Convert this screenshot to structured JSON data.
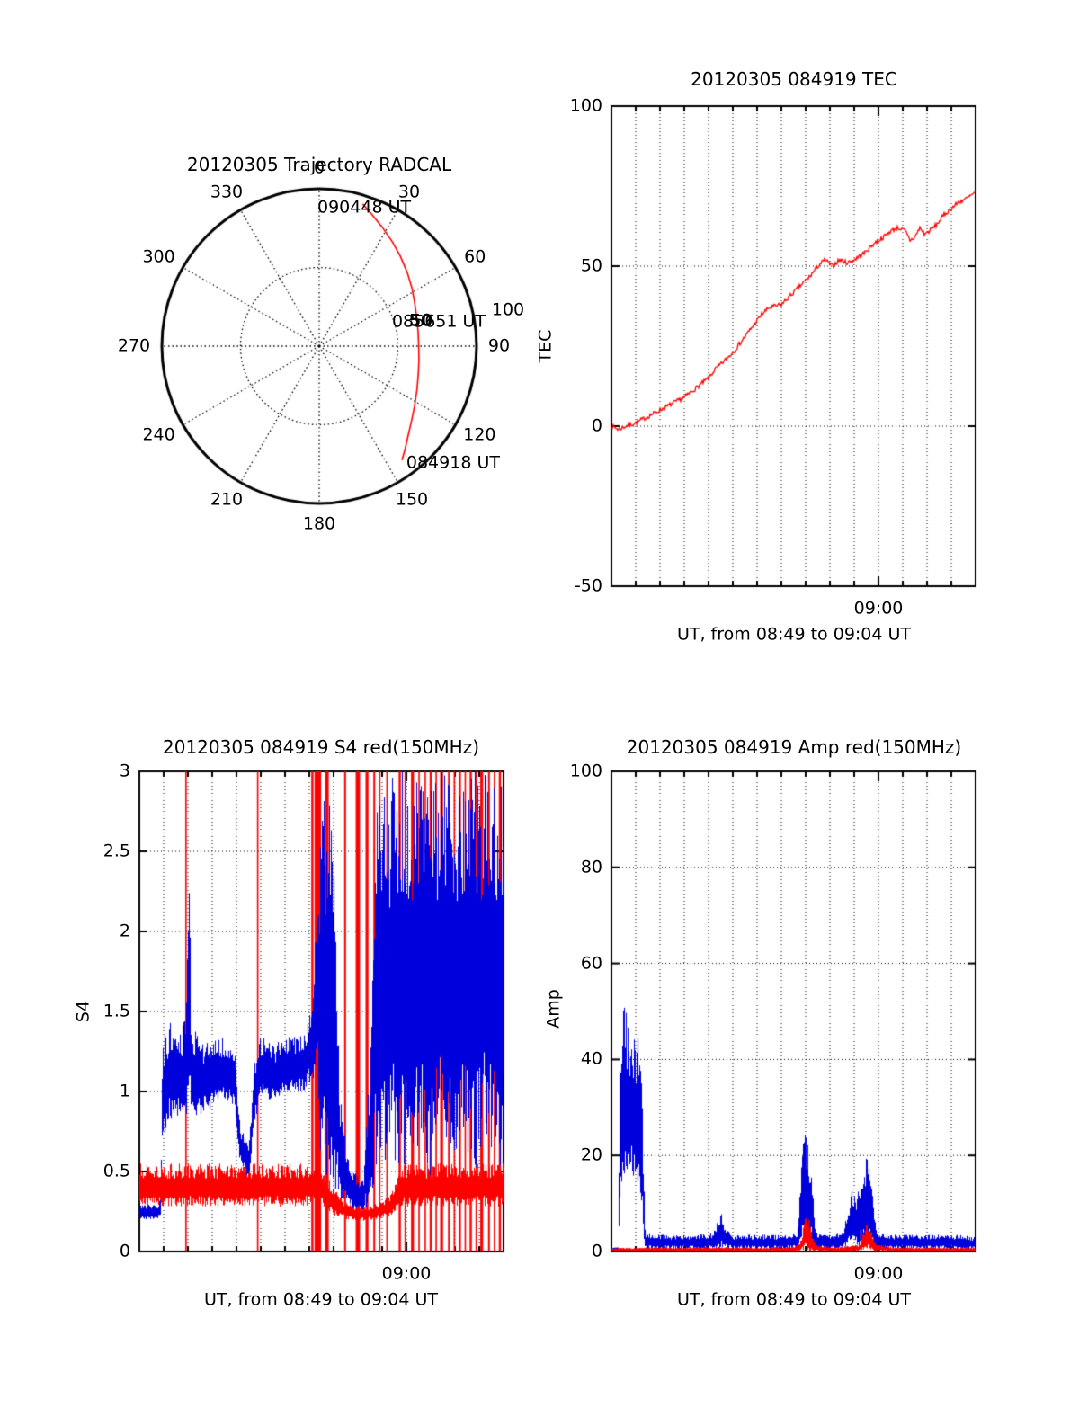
{
  "colors": {
    "red": "#ff0000",
    "blue": "#0000dd",
    "axis": "#000000",
    "background": "#ffffff"
  },
  "chart_data": [
    {
      "type": "polar-line",
      "title": "20120305 Trajectory RADCAL",
      "azimuth_tick_labels": [
        "0",
        "30",
        "60",
        "90",
        "120",
        "150",
        "180",
        "210",
        "240",
        "270",
        "300",
        "330"
      ],
      "azimuth_tick_degrees": [
        0,
        30,
        60,
        90,
        120,
        150,
        180,
        210,
        240,
        270,
        300,
        330
      ],
      "ring_radii": [
        0.5,
        1.0
      ],
      "annotations": [
        {
          "label": "090448 UT",
          "ax": 0.286,
          "ay": -0.88,
          "bold": false
        },
        {
          "label": "085651 UT",
          "ax": 0.76,
          "ay": -0.154,
          "bold": false
        },
        {
          "label": "50",
          "ax": 0.646,
          "ay": -0.16,
          "bold": true
        },
        {
          "label": "100",
          "ax": 1.2,
          "ay": -0.229,
          "bold": false
        },
        {
          "label": "084918 UT",
          "ax": 0.851,
          "ay": 0.743,
          "bold": false
        }
      ],
      "trajectory_az_r": [
        [
          17,
          0.945
        ],
        [
          22,
          0.9
        ],
        [
          28,
          0.855
        ],
        [
          35,
          0.81
        ],
        [
          42,
          0.77
        ],
        [
          50,
          0.73
        ],
        [
          58,
          0.695
        ],
        [
          66,
          0.665
        ],
        [
          74,
          0.645
        ],
        [
          82,
          0.635
        ],
        [
          90,
          0.632
        ],
        [
          98,
          0.64
        ],
        [
          106,
          0.655
        ],
        [
          114,
          0.68
        ],
        [
          122,
          0.715
        ],
        [
          129,
          0.755
        ],
        [
          135,
          0.8
        ],
        [
          140,
          0.85
        ],
        [
          144,
          0.895
        ]
      ]
    },
    {
      "type": "line",
      "title": "20120305 084919 TEC",
      "ylabel": "TEC",
      "xlabel": "UT, from 08:49 to 09:04 UT",
      "ylim": [
        -50,
        100
      ],
      "yticks": [
        100,
        50,
        0,
        -50
      ],
      "ytick_labels": [
        "100",
        "50",
        "0",
        "-50"
      ],
      "grid_yticks": [
        0,
        50
      ],
      "xtick_label": "09:00",
      "xtick_fraction": 0.7333,
      "x_minutes": 15,
      "noise": 0.7,
      "series_keypoints": [
        [
          0,
          0
        ],
        [
          0.3,
          -1
        ],
        [
          0.6,
          0
        ],
        [
          1,
          1
        ],
        [
          1.5,
          3
        ],
        [
          2,
          5
        ],
        [
          2.5,
          7
        ],
        [
          3,
          9
        ],
        [
          3.5,
          12
        ],
        [
          4,
          15
        ],
        [
          4.3,
          18
        ],
        [
          4.6,
          20
        ],
        [
          5,
          23
        ],
        [
          5.4,
          27
        ],
        [
          5.8,
          31
        ],
        [
          6.2,
          35
        ],
        [
          6.5,
          37
        ],
        [
          7,
          38
        ],
        [
          7.4,
          41
        ],
        [
          7.8,
          44
        ],
        [
          8.2,
          47
        ],
        [
          8.5,
          50
        ],
        [
          8.8,
          52
        ],
        [
          9.1,
          50
        ],
        [
          9.4,
          52
        ],
        [
          9.7,
          51
        ],
        [
          10,
          52
        ],
        [
          10.4,
          54
        ],
        [
          10.8,
          57
        ],
        [
          11.2,
          59
        ],
        [
          11.5,
          61
        ],
        [
          11.8,
          62
        ],
        [
          12.1,
          61
        ],
        [
          12.3,
          58
        ],
        [
          12.5,
          59
        ],
        [
          12.7,
          62
        ],
        [
          12.9,
          60
        ],
        [
          13.1,
          61
        ],
        [
          13.4,
          63
        ],
        [
          13.7,
          66
        ],
        [
          14,
          68
        ],
        [
          14.3,
          70
        ],
        [
          14.6,
          71
        ],
        [
          14.8,
          72
        ],
        [
          15,
          73
        ]
      ]
    },
    {
      "type": "line-envelope",
      "title": "20120305 084919 S4 red(150MHz)",
      "ylabel": "S4",
      "xlabel": "UT, from 08:49 to 09:04 UT",
      "ylim": [
        0,
        3
      ],
      "yticks": [
        3,
        2.5,
        2,
        1.5,
        1,
        0.5,
        0
      ],
      "ytick_labels": [
        "3",
        "2.5",
        "2",
        "1.5",
        "1",
        "0.5",
        "0"
      ],
      "grid_yticks": [
        0.5,
        1,
        1.5,
        2,
        2.5
      ],
      "xtick_label": "09:00",
      "xtick_fraction": 0.7333,
      "x_minutes": 15,
      "blue_envelope": [
        [
          0,
          0.2,
          0.3
        ],
        [
          0.05,
          0.2,
          0.3
        ],
        [
          0.058,
          0.22,
          0.34
        ],
        [
          0.062,
          0.7,
          1.3
        ],
        [
          0.08,
          0.8,
          1.45
        ],
        [
          0.1,
          0.85,
          1.35
        ],
        [
          0.125,
          0.8,
          1.45
        ],
        [
          0.132,
          0.8,
          2.0
        ],
        [
          0.136,
          0.9,
          2.65
        ],
        [
          0.14,
          0.8,
          1.45
        ],
        [
          0.17,
          0.85,
          1.3
        ],
        [
          0.2,
          0.9,
          1.35
        ],
        [
          0.23,
          0.95,
          1.35
        ],
        [
          0.26,
          0.9,
          1.3
        ],
        [
          0.275,
          0.55,
          0.8
        ],
        [
          0.3,
          0.45,
          0.65
        ],
        [
          0.312,
          0.75,
          1.15
        ],
        [
          0.33,
          0.95,
          1.35
        ],
        [
          0.37,
          0.95,
          1.3
        ],
        [
          0.41,
          1.0,
          1.35
        ],
        [
          0.45,
          1.0,
          1.35
        ],
        [
          0.475,
          1.05,
          1.6
        ],
        [
          0.49,
          1.0,
          2.4
        ],
        [
          0.5,
          0.4,
          3.0
        ],
        [
          0.52,
          0.3,
          3.0
        ],
        [
          0.535,
          0.35,
          2.4
        ],
        [
          0.55,
          0.3,
          1.0
        ],
        [
          0.57,
          0.28,
          0.6
        ],
        [
          0.59,
          0.25,
          0.5
        ],
        [
          0.615,
          0.25,
          0.45
        ],
        [
          0.635,
          0.3,
          1.4
        ],
        [
          0.648,
          0.45,
          2.8
        ],
        [
          0.66,
          0.6,
          3.0
        ],
        [
          0.675,
          0.45,
          2.8
        ],
        [
          0.69,
          0.7,
          3.0
        ],
        [
          0.705,
          0.45,
          3.0
        ],
        [
          0.72,
          0.6,
          3.0
        ],
        [
          0.74,
          0.4,
          3.0
        ],
        [
          0.77,
          0.7,
          3.0
        ],
        [
          0.8,
          0.45,
          3.0
        ],
        [
          0.83,
          0.7,
          3.0
        ],
        [
          0.86,
          0.45,
          3.0
        ],
        [
          0.89,
          0.65,
          3.0
        ],
        [
          0.92,
          0.45,
          3.0
        ],
        [
          0.95,
          0.7,
          3.0
        ],
        [
          0.975,
          0.5,
          3.0
        ],
        [
          1,
          0.55,
          3.0
        ]
      ],
      "red_trace": [
        [
          0.5,
          0.28,
          0.55
        ],
        [
          0.53,
          0.22,
          0.4
        ],
        [
          0.57,
          0.2,
          0.3
        ],
        [
          0.61,
          0.19,
          0.28
        ],
        [
          0.65,
          0.2,
          0.3
        ],
        [
          0.69,
          0.22,
          0.36
        ],
        [
          0.72,
          0.28,
          0.55
        ]
      ],
      "red_spikes": [
        {
          "x": 0.128,
          "w": 0.004
        },
        {
          "x": 0.325,
          "w": 0.004
        },
        {
          "x": 0.475,
          "w": 0.006
        },
        {
          "x": 0.49,
          "w": 0.018
        },
        {
          "x": 0.515,
          "w": 0.01
        },
        {
          "x": 0.565,
          "w": 0.005
        },
        {
          "x": 0.6,
          "w": 0.012
        },
        {
          "x": 0.625,
          "w": 0.008
        },
        {
          "x": 0.645,
          "w": 0.005
        },
        {
          "x": 0.66,
          "w": 0.004
        },
        {
          "x": 0.68,
          "w": 0.004
        },
        {
          "x": 0.715,
          "w": 0.006
        },
        {
          "x": 0.73,
          "w": 0.004
        },
        {
          "x": 0.75,
          "w": 0.008
        },
        {
          "x": 0.768,
          "w": 0.004
        },
        {
          "x": 0.785,
          "w": 0.004
        },
        {
          "x": 0.8,
          "w": 0.006
        },
        {
          "x": 0.815,
          "w": 0.004
        },
        {
          "x": 0.83,
          "w": 0.008
        },
        {
          "x": 0.85,
          "w": 0.005
        },
        {
          "x": 0.865,
          "w": 0.004
        },
        {
          "x": 0.88,
          "w": 0.006
        },
        {
          "x": 0.895,
          "w": 0.004
        },
        {
          "x": 0.91,
          "w": 0.006
        },
        {
          "x": 0.925,
          "w": 0.004
        },
        {
          "x": 0.94,
          "w": 0.008
        },
        {
          "x": 0.96,
          "w": 0.005
        },
        {
          "x": 0.975,
          "w": 0.004
        },
        {
          "x": 0.99,
          "w": 0.006
        }
      ]
    },
    {
      "type": "line-envelope",
      "title": "20120305 084919 Amp red(150MHz)",
      "ylabel": "Amp",
      "xlabel": "UT, from 08:49 to 09:04 UT",
      "ylim": [
        0,
        100
      ],
      "yticks": [
        100,
        80,
        60,
        40,
        20,
        0
      ],
      "ytick_labels": [
        "100",
        "80",
        "60",
        "40",
        "20",
        "0"
      ],
      "grid_yticks": [
        20,
        40,
        60,
        80
      ],
      "xtick_label": "09:00",
      "xtick_fraction": 0.7333,
      "x_minutes": 15,
      "blue_envelope": [
        [
          0,
          0.2,
          0.8
        ],
        [
          0.018,
          0.2,
          0.9
        ],
        [
          0.023,
          12,
          46
        ],
        [
          0.03,
          15,
          52
        ],
        [
          0.04,
          14,
          50
        ],
        [
          0.05,
          15,
          48
        ],
        [
          0.062,
          14,
          47
        ],
        [
          0.072,
          14,
          45
        ],
        [
          0.082,
          10,
          40
        ],
        [
          0.087,
          1,
          18
        ],
        [
          0.092,
          0.5,
          4
        ],
        [
          0.13,
          0.5,
          3.5
        ],
        [
          0.18,
          0.5,
          3.5
        ],
        [
          0.23,
          0.5,
          3.5
        ],
        [
          0.28,
          0.5,
          4
        ],
        [
          0.293,
          0.5,
          7.5
        ],
        [
          0.3,
          0.5,
          8.5
        ],
        [
          0.312,
          0.5,
          5
        ],
        [
          0.33,
          0.5,
          3.5
        ],
        [
          0.38,
          0.5,
          3.5
        ],
        [
          0.43,
          0.5,
          3.5
        ],
        [
          0.47,
          0.5,
          3.5
        ],
        [
          0.51,
          0.5,
          4
        ],
        [
          0.518,
          1,
          14
        ],
        [
          0.527,
          1,
          25
        ],
        [
          0.537,
          1,
          23
        ],
        [
          0.547,
          1,
          20
        ],
        [
          0.555,
          1,
          9
        ],
        [
          0.562,
          0.5,
          4
        ],
        [
          0.6,
          0.5,
          3.5
        ],
        [
          0.635,
          0.5,
          4
        ],
        [
          0.648,
          1,
          9
        ],
        [
          0.66,
          1,
          13
        ],
        [
          0.672,
          1,
          12
        ],
        [
          0.685,
          1,
          16
        ],
        [
          0.697,
          1,
          20
        ],
        [
          0.708,
          1,
          18
        ],
        [
          0.718,
          1,
          10
        ],
        [
          0.727,
          0.5,
          4
        ],
        [
          0.76,
          0.5,
          3.5
        ],
        [
          0.81,
          0.5,
          3.5
        ],
        [
          0.86,
          0.5,
          3.5
        ],
        [
          0.91,
          0.5,
          3.5
        ],
        [
          0.96,
          0.5,
          3.5
        ],
        [
          1,
          0.5,
          3
        ]
      ],
      "red_trace": [
        [
          0,
          0,
          0.7
        ],
        [
          0.1,
          0,
          0.9
        ],
        [
          0.2,
          0,
          0.9
        ],
        [
          0.3,
          0,
          1.0
        ],
        [
          0.4,
          0,
          0.9
        ],
        [
          0.5,
          0,
          1.0
        ],
        [
          0.52,
          0,
          2.5
        ],
        [
          0.53,
          0,
          8
        ],
        [
          0.54,
          0,
          7
        ],
        [
          0.55,
          0,
          4
        ],
        [
          0.56,
          0,
          1.5
        ],
        [
          0.62,
          0,
          0.9
        ],
        [
          0.68,
          0,
          1.5
        ],
        [
          0.695,
          0,
          5
        ],
        [
          0.705,
          0,
          6.5
        ],
        [
          0.715,
          0,
          4
        ],
        [
          0.725,
          0,
          1.5
        ],
        [
          0.78,
          0,
          0.9
        ],
        [
          0.88,
          0,
          0.9
        ],
        [
          1,
          0,
          0.9
        ]
      ],
      "red_spikes": []
    }
  ]
}
